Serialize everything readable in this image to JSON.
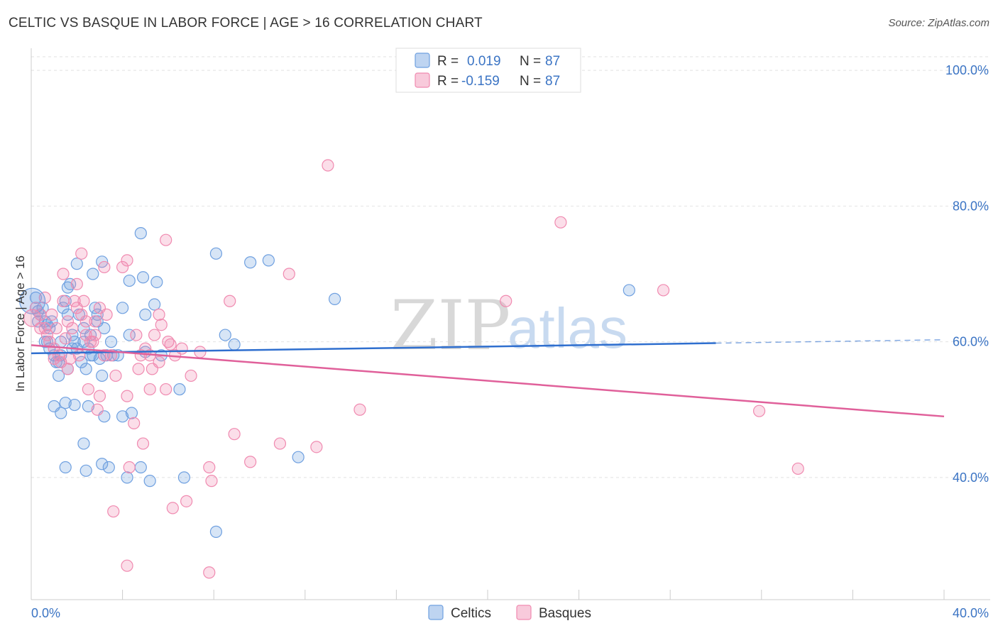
{
  "header": {
    "title": "CELTIC VS BASQUE IN LABOR FORCE | AGE > 16 CORRELATION CHART",
    "source": "Source: ZipAtlas.com"
  },
  "watermark": {
    "zip": "ZIP",
    "atlas": "atlas"
  },
  "legend_top": [
    {
      "r_label": "R =",
      "r_value": "0.019",
      "n_label": "N =",
      "n_value": "87",
      "color": "#6fa0e0"
    },
    {
      "r_label": "R =",
      "r_value": "-0.159",
      "n_label": "N =",
      "n_value": "87",
      "color": "#f08ab0"
    }
  ],
  "chart_data": {
    "type": "scatter",
    "title": "CELTIC VS BASQUE IN LABOR FORCE | AGE > 16 CORRELATION CHART",
    "xlabel": "",
    "ylabel": "In Labor Force | Age > 16",
    "xlim": [
      0,
      40
    ],
    "ylim": [
      22,
      102
    ],
    "x_tick_labels": [
      "0.0%",
      "40.0%"
    ],
    "y_ticks": [
      40,
      60,
      80,
      100
    ],
    "y_tick_labels": [
      "40.0%",
      "60.0%",
      "80.0%",
      "100.0%"
    ],
    "grid": true,
    "legend": [
      "Celtics",
      "Basques"
    ],
    "series": [
      {
        "name": "Celtics",
        "color": "#6fa0e0",
        "line_color": "#2f6fcf",
        "trend": {
          "x0": 0,
          "y0": 58.3,
          "x1": 30,
          "y1": 59.8,
          "dash_to": 40,
          "dash_y": 60.3
        },
        "points": [
          [
            0.2,
            66.5
          ],
          [
            0.3,
            64.5
          ],
          [
            0.3,
            63
          ],
          [
            0.5,
            65
          ],
          [
            0.6,
            60
          ],
          [
            0.7,
            62.5
          ],
          [
            0.7,
            60
          ],
          [
            0.8,
            62
          ],
          [
            0.9,
            63
          ],
          [
            1,
            58
          ],
          [
            1.1,
            57
          ],
          [
            1.2,
            55
          ],
          [
            1.3,
            58
          ],
          [
            1.4,
            65
          ],
          [
            1.5,
            66
          ],
          [
            1.6,
            68
          ],
          [
            1.7,
            68.5
          ],
          [
            1.8,
            59
          ],
          [
            1.9,
            60
          ],
          [
            2,
            59
          ],
          [
            2.1,
            64
          ],
          [
            2.2,
            57
          ],
          [
            2.3,
            62
          ],
          [
            2.4,
            56
          ],
          [
            2.5,
            59
          ],
          [
            2.6,
            58
          ],
          [
            2.7,
            58
          ],
          [
            2.8,
            65
          ],
          [
            2.9,
            64
          ],
          [
            3,
            57.5
          ],
          [
            3.1,
            55
          ],
          [
            3.2,
            62
          ],
          [
            3.3,
            58
          ],
          [
            3.5,
            60
          ],
          [
            3.8,
            58
          ],
          [
            4,
            65
          ],
          [
            4.3,
            69
          ],
          [
            4.8,
            76
          ],
          [
            4.9,
            69.5
          ],
          [
            5,
            64
          ],
          [
            5.4,
            65.5
          ],
          [
            5.5,
            68.8
          ],
          [
            5.7,
            58
          ],
          [
            1.3,
            60
          ],
          [
            1.6,
            64
          ],
          [
            1.8,
            61
          ],
          [
            2,
            71.5
          ],
          [
            2.3,
            60
          ],
          [
            2.6,
            61
          ],
          [
            2.7,
            70
          ],
          [
            3.1,
            71.8
          ],
          [
            1.0,
            50.5
          ],
          [
            1.3,
            49.5
          ],
          [
            1.5,
            51
          ],
          [
            1.9,
            50.7
          ],
          [
            2.5,
            50.5
          ],
          [
            3.2,
            49
          ],
          [
            4,
            49
          ],
          [
            4.4,
            49.5
          ],
          [
            4.8,
            41.5
          ],
          [
            2.3,
            45
          ],
          [
            1.5,
            41.5
          ],
          [
            2.4,
            41
          ],
          [
            3.1,
            42
          ],
          [
            3.4,
            41.5
          ],
          [
            4.2,
            40
          ],
          [
            5.2,
            39.5
          ],
          [
            6.7,
            40
          ],
          [
            8.1,
            32
          ],
          [
            9.6,
            71.7
          ],
          [
            8.1,
            73
          ],
          [
            10.4,
            72
          ],
          [
            8.5,
            61
          ],
          [
            8.9,
            59.6
          ],
          [
            13.3,
            66.3
          ],
          [
            11.7,
            43
          ],
          [
            26.2,
            67.6
          ],
          [
            6.5,
            53
          ],
          [
            4.3,
            61
          ],
          [
            5.0,
            58.5
          ],
          [
            0.4,
            64
          ],
          [
            0.6,
            63
          ],
          [
            0.8,
            59
          ],
          [
            1.2,
            57
          ],
          [
            1.6,
            56
          ],
          [
            2.9,
            63
          ],
          [
            3.6,
            58
          ]
        ]
      },
      {
        "name": "Basques",
        "color": "#f08ab0",
        "line_color": "#e0609a",
        "trend": {
          "x0": 0,
          "y0": 59.5,
          "x1": 40,
          "y1": 49.0
        },
        "points": [
          [
            0.2,
            65
          ],
          [
            0.4,
            64
          ],
          [
            0.6,
            62
          ],
          [
            0.8,
            60
          ],
          [
            1.0,
            59
          ],
          [
            1.2,
            58
          ],
          [
            1.4,
            66
          ],
          [
            1.6,
            63
          ],
          [
            1.8,
            62
          ],
          [
            2.0,
            65
          ],
          [
            2.2,
            64
          ],
          [
            2.4,
            61
          ],
          [
            2.6,
            60
          ],
          [
            2.8,
            61
          ],
          [
            3.0,
            65
          ],
          [
            3.2,
            58
          ],
          [
            1.4,
            70
          ],
          [
            2.2,
            73
          ],
          [
            2.0,
            68.5
          ],
          [
            3.2,
            71
          ],
          [
            4.0,
            71
          ],
          [
            4.2,
            72
          ],
          [
            1.6,
            56
          ],
          [
            2.5,
            53
          ],
          [
            2.9,
            50
          ],
          [
            3.0,
            52
          ],
          [
            3.7,
            55
          ],
          [
            4.2,
            52
          ],
          [
            4.5,
            48
          ],
          [
            5.2,
            53
          ],
          [
            5.6,
            57
          ],
          [
            6.1,
            59.6
          ],
          [
            5.9,
            53
          ],
          [
            5.9,
            75
          ],
          [
            5.6,
            64
          ],
          [
            5.2,
            58
          ],
          [
            5.0,
            59
          ],
          [
            4.8,
            58
          ],
          [
            4.7,
            56
          ],
          [
            5.4,
            61
          ],
          [
            6.0,
            60
          ],
          [
            4.3,
            41.5
          ],
          [
            4.9,
            45
          ],
          [
            3.6,
            35
          ],
          [
            4.2,
            27
          ],
          [
            6.2,
            35.5
          ],
          [
            6.8,
            36.5
          ],
          [
            7.8,
            41.5
          ],
          [
            7.9,
            39.5
          ],
          [
            7.8,
            26
          ],
          [
            8.7,
            66
          ],
          [
            8.9,
            46.4
          ],
          [
            9.6,
            42.3
          ],
          [
            10.9,
            45
          ],
          [
            11.3,
            70
          ],
          [
            12.5,
            44.5
          ],
          [
            13,
            86
          ],
          [
            14.4,
            50
          ],
          [
            20.8,
            66
          ],
          [
            23.2,
            77.6
          ],
          [
            27.7,
            67.6
          ],
          [
            31.9,
            49.8
          ],
          [
            33.6,
            41.3
          ],
          [
            0.4,
            62
          ],
          [
            0.7,
            61
          ],
          [
            1.0,
            57.5
          ],
          [
            1.3,
            57
          ],
          [
            1.7,
            57.5
          ],
          [
            1.9,
            66
          ],
          [
            2.1,
            58
          ],
          [
            2.4,
            63
          ],
          [
            2.7,
            60
          ],
          [
            3.3,
            64
          ],
          [
            0.6,
            66.5
          ],
          [
            0.9,
            64
          ],
          [
            1.1,
            62
          ],
          [
            1.5,
            60.5
          ],
          [
            2.3,
            66
          ],
          [
            2.8,
            63
          ],
          [
            3.5,
            58
          ],
          [
            4.6,
            61
          ],
          [
            5.3,
            56
          ],
          [
            5.7,
            62.5
          ],
          [
            6.3,
            58
          ],
          [
            6.6,
            59
          ],
          [
            7.0,
            55
          ],
          [
            7.4,
            58.5
          ]
        ]
      }
    ]
  }
}
